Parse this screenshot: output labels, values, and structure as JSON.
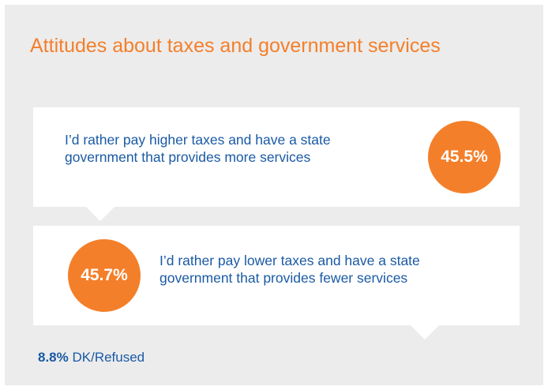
{
  "title": "Attitudes about taxes and government services",
  "options": [
    {
      "statement": "I’d rather pay higher taxes and have a state government that provides more services",
      "percent": "45.5%"
    },
    {
      "statement": "I’d rather pay lower taxes and have a state government that provides fewer services",
      "percent": "45.7%"
    }
  ],
  "other": {
    "percent": "8.8%",
    "label": "DK/Refused"
  },
  "colors": {
    "accent": "#f47f2a",
    "text_blue": "#1a5aa5",
    "panel_background": "#ececec",
    "card_background": "#ffffff"
  }
}
